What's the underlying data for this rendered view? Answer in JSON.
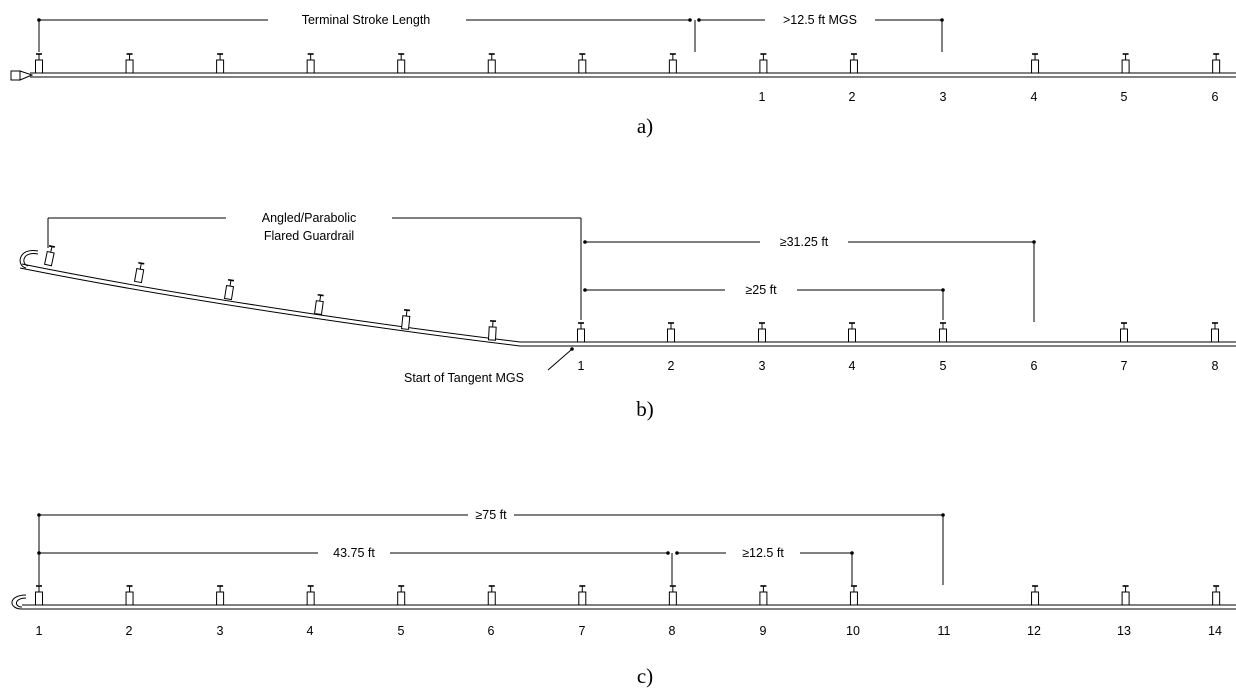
{
  "panel_a": {
    "caption": "a)",
    "dim_terminal": "Terminal Stroke Length",
    "dim_mgs": ">12.5 ft MGS",
    "post_numbers": [
      "1",
      "2",
      "3",
      "4",
      "5",
      "6"
    ]
  },
  "panel_b": {
    "caption": "b)",
    "flare_label_line1": "Angled/Parabolic",
    "flare_label_line2": "Flared Guardrail",
    "dim_long": "≥31.25 ft",
    "dim_short": "≥25 ft",
    "tangent_label": "Start of Tangent MGS",
    "post_numbers": [
      "1",
      "2",
      "3",
      "4",
      "5",
      "6",
      "7",
      "8"
    ]
  },
  "panel_c": {
    "caption": "c)",
    "dim_long": "≥75 ft",
    "dim_mid": "43.75 ft",
    "dim_short": "≥12.5 ft",
    "post_numbers": [
      "1",
      "2",
      "3",
      "4",
      "5",
      "6",
      "7",
      "8",
      "9",
      "10",
      "11",
      "12",
      "13",
      "14"
    ]
  }
}
